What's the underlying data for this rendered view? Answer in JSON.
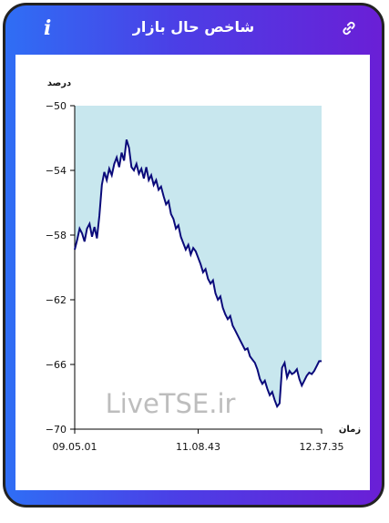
{
  "header": {
    "title": "شاخص حال بازار",
    "info_icon": "info-icon",
    "link_icon": "link-icon"
  },
  "colors": {
    "frame_gradient_start": "#2f6ef5",
    "frame_gradient_end": "#6a1fd6",
    "line": "#0a0a7a",
    "area_fill": "#c8e7ee"
  },
  "watermark": "LiveTSE.ir",
  "chart_data": {
    "type": "line",
    "ylabel": "درصد",
    "xlabel": "زمان",
    "ylim": [
      -70,
      -50
    ],
    "yticks": [
      -50,
      -54,
      -58,
      -62,
      -66,
      -70
    ],
    "ytick_labels": [
      "−50",
      "−54",
      "−58",
      "−62",
      "−66",
      "−70"
    ],
    "xtick_labels": [
      "09.05.01",
      "11.08.43",
      "12.37.35"
    ],
    "x": [
      0,
      1,
      2,
      3,
      4,
      5,
      6,
      7,
      8,
      9,
      10,
      11,
      12,
      13,
      14,
      15,
      16,
      17,
      18,
      19,
      20,
      21,
      22,
      23,
      24,
      25,
      26,
      27,
      28,
      29,
      30,
      31,
      32,
      33,
      34,
      35,
      36,
      37,
      38,
      39,
      40,
      41,
      42,
      43,
      44,
      45,
      46,
      47,
      48,
      49,
      50,
      51,
      52,
      53,
      54,
      55,
      56,
      57,
      58,
      59,
      60,
      61,
      62,
      63,
      64,
      65,
      66,
      67,
      68,
      69,
      70,
      71,
      72,
      73,
      74,
      75,
      76,
      77,
      78,
      79,
      80,
      81,
      82,
      83,
      84,
      85,
      86,
      87,
      88,
      89,
      90,
      91,
      92,
      93,
      94,
      95,
      96,
      97,
      98,
      99,
      100
    ],
    "series": [
      {
        "values": [
          -58.9,
          -58.3,
          -57.6,
          -57.9,
          -58.4,
          -57.6,
          -57.3,
          -58.1,
          -57.5,
          -58.2,
          -56.8,
          -54.9,
          -54.1,
          -54.6,
          -53.9,
          -54.3,
          -53.6,
          -53.2,
          -53.8,
          -52.9,
          -53.4,
          -52.1,
          -52.6,
          -53.8,
          -54.0,
          -53.6,
          -54.2,
          -53.9,
          -54.5,
          -53.8,
          -54.6,
          -54.3,
          -54.9,
          -54.6,
          -55.2,
          -55.0,
          -55.6,
          -56.1,
          -55.9,
          -56.7,
          -57.0,
          -57.6,
          -57.4,
          -58.1,
          -58.5,
          -58.9,
          -58.6,
          -59.2,
          -58.8,
          -59.0,
          -59.4,
          -59.8,
          -60.3,
          -60.1,
          -60.7,
          -61.0,
          -60.8,
          -61.6,
          -62.0,
          -61.8,
          -62.5,
          -62.9,
          -63.2,
          -63.0,
          -63.6,
          -63.9,
          -64.2,
          -64.5,
          -64.8,
          -65.1,
          -65.0,
          -65.5,
          -65.7,
          -65.9,
          -66.3,
          -66.9,
          -67.2,
          -67.0,
          -67.5,
          -67.9,
          -67.7,
          -68.2,
          -68.6,
          -68.4,
          -66.2,
          -65.9,
          -66.8,
          -66.4,
          -66.6,
          -66.5,
          -66.3,
          -66.9,
          -67.3,
          -67.0,
          -66.7,
          -66.5,
          -66.6,
          -66.4,
          -66.1,
          -65.8,
          -65.8
        ]
      }
    ],
    "grid": false,
    "legend": "none"
  }
}
